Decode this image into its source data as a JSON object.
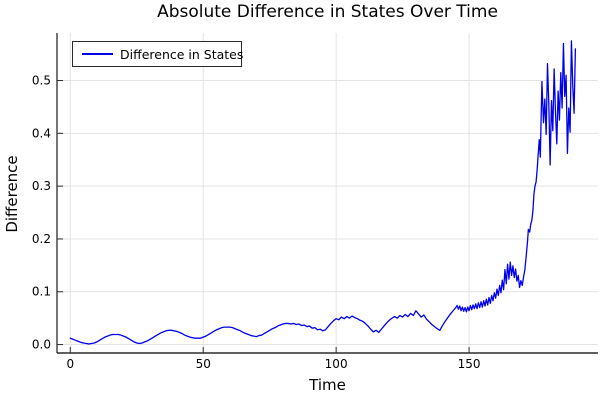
{
  "chart_data": {
    "type": "line",
    "title": "Absolute Difference in States Over Time",
    "xlabel": "Time",
    "ylabel": "Difference",
    "xlim": [
      -5,
      198.5
    ],
    "ylim": [
      -0.016,
      0.59
    ],
    "x_ticks": [
      0,
      50,
      100,
      150
    ],
    "x_tick_labels": [
      "0",
      "50",
      "100",
      "150"
    ],
    "y_ticks": [
      0.0,
      0.1,
      0.2,
      0.3,
      0.4,
      0.5
    ],
    "y_tick_labels": [
      "0.0",
      "0.1",
      "0.2",
      "0.3",
      "0.4",
      "0.5"
    ],
    "grid": true,
    "colors": {
      "line": "#0000ee",
      "grid": "#e3e3e3",
      "spine": "#2b2b2b",
      "background": "#ffffff"
    },
    "legend": {
      "position": "top-left",
      "entries": [
        {
          "label": "Difference in States",
          "color": "#0000ee"
        }
      ]
    },
    "series": [
      {
        "name": "Difference in States",
        "color": "#0000ee",
        "points": [
          [
            0,
            0.012
          ],
          [
            1,
            0.01
          ],
          [
            2,
            0.008
          ],
          [
            3,
            0.006
          ],
          [
            4,
            0.004
          ],
          [
            5,
            0.003
          ],
          [
            6,
            0.002
          ],
          [
            7,
            0.001
          ],
          [
            8,
            0.002
          ],
          [
            9,
            0.003
          ],
          [
            10,
            0.005
          ],
          [
            11,
            0.008
          ],
          [
            12,
            0.011
          ],
          [
            13,
            0.014
          ],
          [
            14,
            0.016
          ],
          [
            15,
            0.018
          ],
          [
            16,
            0.019
          ],
          [
            17,
            0.019
          ],
          [
            18,
            0.019
          ],
          [
            19,
            0.018
          ],
          [
            20,
            0.016
          ],
          [
            21,
            0.014
          ],
          [
            22,
            0.011
          ],
          [
            23,
            0.008
          ],
          [
            24,
            0.005
          ],
          [
            25,
            0.003
          ],
          [
            26,
            0.002
          ],
          [
            27,
            0.003
          ],
          [
            28,
            0.005
          ],
          [
            29,
            0.007
          ],
          [
            30,
            0.01
          ],
          [
            31,
            0.013
          ],
          [
            32,
            0.016
          ],
          [
            33,
            0.019
          ],
          [
            34,
            0.022
          ],
          [
            35,
            0.024
          ],
          [
            36,
            0.026
          ],
          [
            37,
            0.027
          ],
          [
            38,
            0.027
          ],
          [
            39,
            0.026
          ],
          [
            40,
            0.025
          ],
          [
            41,
            0.023
          ],
          [
            42,
            0.021
          ],
          [
            43,
            0.018
          ],
          [
            44,
            0.016
          ],
          [
            45,
            0.014
          ],
          [
            46,
            0.013
          ],
          [
            47,
            0.012
          ],
          [
            48,
            0.012
          ],
          [
            49,
            0.012
          ],
          [
            50,
            0.014
          ],
          [
            51,
            0.016
          ],
          [
            52,
            0.019
          ],
          [
            53,
            0.022
          ],
          [
            54,
            0.025
          ],
          [
            55,
            0.028
          ],
          [
            56,
            0.03
          ],
          [
            57,
            0.032
          ],
          [
            58,
            0.033
          ],
          [
            59,
            0.033
          ],
          [
            60,
            0.033
          ],
          [
            61,
            0.032
          ],
          [
            62,
            0.03
          ],
          [
            63,
            0.028
          ],
          [
            64,
            0.026
          ],
          [
            65,
            0.023
          ],
          [
            66,
            0.021
          ],
          [
            67,
            0.019
          ],
          [
            68,
            0.017
          ],
          [
            69,
            0.016
          ],
          [
            70,
            0.015
          ],
          [
            71,
            0.017
          ],
          [
            72,
            0.018
          ],
          [
            73,
            0.021
          ],
          [
            74,
            0.024
          ],
          [
            75,
            0.027
          ],
          [
            76,
            0.03
          ],
          [
            77,
            0.032
          ],
          [
            78,
            0.035
          ],
          [
            79,
            0.037
          ],
          [
            80,
            0.039
          ],
          [
            81,
            0.04
          ],
          [
            82,
            0.04
          ],
          [
            83,
            0.039
          ],
          [
            84,
            0.04
          ],
          [
            85,
            0.038
          ],
          [
            86,
            0.039
          ],
          [
            87,
            0.036
          ],
          [
            88,
            0.037
          ],
          [
            89,
            0.034
          ],
          [
            90,
            0.035
          ],
          [
            91,
            0.031
          ],
          [
            92,
            0.032
          ],
          [
            93,
            0.028
          ],
          [
            94,
            0.029
          ],
          [
            95,
            0.026
          ],
          [
            96,
            0.028
          ],
          [
            97,
            0.034
          ],
          [
            98,
            0.04
          ],
          [
            99,
            0.045
          ],
          [
            100,
            0.049
          ],
          [
            101,
            0.047
          ],
          [
            102,
            0.052
          ],
          [
            103,
            0.049
          ],
          [
            104,
            0.053
          ],
          [
            105,
            0.05
          ],
          [
            106,
            0.054
          ],
          [
            107,
            0.051
          ],
          [
            108,
            0.049
          ],
          [
            109,
            0.046
          ],
          [
            110,
            0.044
          ],
          [
            111,
            0.04
          ],
          [
            112,
            0.035
          ],
          [
            113,
            0.029
          ],
          [
            114,
            0.024
          ],
          [
            115,
            0.027
          ],
          [
            116,
            0.023
          ],
          [
            117,
            0.029
          ],
          [
            118,
            0.035
          ],
          [
            119,
            0.041
          ],
          [
            120,
            0.046
          ],
          [
            121,
            0.05
          ],
          [
            122,
            0.053
          ],
          [
            123,
            0.05
          ],
          [
            124,
            0.055
          ],
          [
            125,
            0.052
          ],
          [
            126,
            0.057
          ],
          [
            127,
            0.053
          ],
          [
            128,
            0.059
          ],
          [
            129,
            0.055
          ],
          [
            130,
            0.064
          ],
          [
            131,
            0.058
          ],
          [
            132,
            0.052
          ],
          [
            133,
            0.056
          ],
          [
            134,
            0.048
          ],
          [
            135,
            0.043
          ],
          [
            136,
            0.038
          ],
          [
            137,
            0.034
          ],
          [
            138,
            0.03
          ],
          [
            139,
            0.027
          ],
          [
            140,
            0.036
          ],
          [
            141,
            0.044
          ],
          [
            142,
            0.051
          ],
          [
            143,
            0.058
          ],
          [
            144,
            0.064
          ],
          [
            145,
            0.07
          ],
          [
            145.5,
            0.074
          ],
          [
            146,
            0.067
          ],
          [
            146.5,
            0.073
          ],
          [
            147,
            0.064
          ],
          [
            147.5,
            0.071
          ],
          [
            148,
            0.063
          ],
          [
            148.5,
            0.07
          ],
          [
            149,
            0.062
          ],
          [
            149.5,
            0.071
          ],
          [
            150,
            0.064
          ],
          [
            150.5,
            0.074
          ],
          [
            151,
            0.066
          ],
          [
            151.5,
            0.075
          ],
          [
            152,
            0.068
          ],
          [
            152.5,
            0.077
          ],
          [
            153,
            0.068
          ],
          [
            153.5,
            0.079
          ],
          [
            154,
            0.07
          ],
          [
            154.5,
            0.081
          ],
          [
            155,
            0.071
          ],
          [
            155.5,
            0.083
          ],
          [
            156,
            0.073
          ],
          [
            156.5,
            0.086
          ],
          [
            157,
            0.075
          ],
          [
            157.5,
            0.089
          ],
          [
            158,
            0.078
          ],
          [
            158.5,
            0.093
          ],
          [
            159,
            0.083
          ],
          [
            159.5,
            0.098
          ],
          [
            160,
            0.088
          ],
          [
            160.5,
            0.105
          ],
          [
            161,
            0.093
          ],
          [
            161.5,
            0.112
          ],
          [
            162,
            0.098
          ],
          [
            162.5,
            0.122
          ],
          [
            163,
            0.104
          ],
          [
            163.5,
            0.142
          ],
          [
            164,
            0.115
          ],
          [
            164.5,
            0.152
          ],
          [
            165,
            0.124
          ],
          [
            165.5,
            0.156
          ],
          [
            166,
            0.131
          ],
          [
            166.5,
            0.149
          ],
          [
            167,
            0.127
          ],
          [
            167.5,
            0.143
          ],
          [
            168,
            0.12
          ],
          [
            168.5,
            0.131
          ],
          [
            169,
            0.108
          ],
          [
            169.5,
            0.121
          ],
          [
            170,
            0.112
          ],
          [
            170.5,
            0.128
          ],
          [
            171,
            0.142
          ],
          [
            171.5,
            0.168
          ],
          [
            172,
            0.196
          ],
          [
            172.3,
            0.218
          ],
          [
            172.8,
            0.213
          ],
          [
            173.2,
            0.228
          ],
          [
            173.6,
            0.235
          ],
          [
            174,
            0.252
          ],
          [
            174.4,
            0.285
          ],
          [
            174.8,
            0.3
          ],
          [
            175.2,
            0.308
          ],
          [
            175.6,
            0.33
          ],
          [
            176,
            0.36
          ],
          [
            176.4,
            0.388
          ],
          [
            176.8,
            0.355
          ],
          [
            177.4,
            0.498
          ],
          [
            178,
            0.42
          ],
          [
            178.5,
            0.465
          ],
          [
            179,
            0.398
          ],
          [
            179.5,
            0.532
          ],
          [
            180,
            0.455
          ],
          [
            180.5,
            0.34
          ],
          [
            181,
            0.462
          ],
          [
            181.5,
            0.405
          ],
          [
            182,
            0.522
          ],
          [
            182.5,
            0.442
          ],
          [
            183,
            0.38
          ],
          [
            183.5,
            0.48
          ],
          [
            184,
            0.425
          ],
          [
            184.5,
            0.515
          ],
          [
            185,
            0.448
          ],
          [
            185.5,
            0.57
          ],
          [
            186,
            0.47
          ],
          [
            186.5,
            0.51
          ],
          [
            187,
            0.362
          ],
          [
            187.5,
            0.448
          ],
          [
            188,
            0.402
          ],
          [
            188.5,
            0.575
          ],
          [
            189,
            0.492
          ],
          [
            189.5,
            0.438
          ],
          [
            190,
            0.56
          ]
        ]
      }
    ]
  }
}
